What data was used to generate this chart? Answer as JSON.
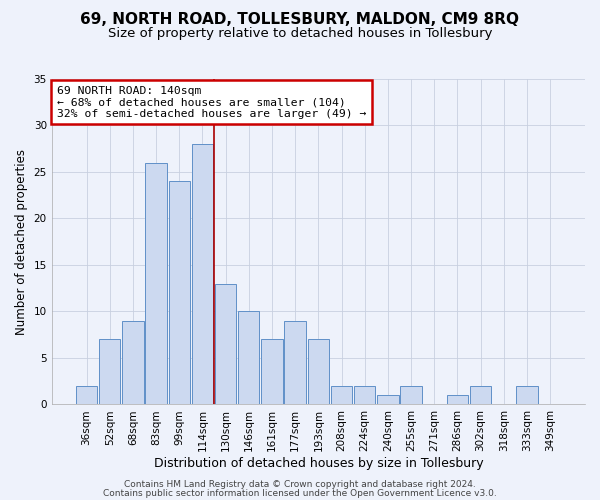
{
  "title": "69, NORTH ROAD, TOLLESBURY, MALDON, CM9 8RQ",
  "subtitle": "Size of property relative to detached houses in Tollesbury",
  "xlabel": "Distribution of detached houses by size in Tollesbury",
  "ylabel": "Number of detached properties",
  "bar_labels": [
    "36sqm",
    "52sqm",
    "68sqm",
    "83sqm",
    "99sqm",
    "114sqm",
    "130sqm",
    "146sqm",
    "161sqm",
    "177sqm",
    "193sqm",
    "208sqm",
    "224sqm",
    "240sqm",
    "255sqm",
    "271sqm",
    "286sqm",
    "302sqm",
    "318sqm",
    "333sqm",
    "349sqm"
  ],
  "bar_values": [
    2,
    7,
    9,
    26,
    24,
    28,
    13,
    10,
    7,
    9,
    7,
    2,
    2,
    1,
    2,
    0,
    1,
    2,
    0,
    2,
    0
  ],
  "bar_color": "#ccd9f0",
  "bar_edge_color": "#6090c8",
  "vline_color": "#aa0000",
  "ylim": [
    0,
    35
  ],
  "yticks": [
    0,
    5,
    10,
    15,
    20,
    25,
    30,
    35
  ],
  "annotation_title": "69 NORTH ROAD: 140sqm",
  "annotation_line1": "← 68% of detached houses are smaller (104)",
  "annotation_line2": "32% of semi-detached houses are larger (49) →",
  "annotation_box_color": "#ffffff",
  "annotation_box_edge": "#cc0000",
  "footer_line1": "Contains HM Land Registry data © Crown copyright and database right 2024.",
  "footer_line2": "Contains public sector information licensed under the Open Government Licence v3.0.",
  "bg_color": "#eef2fb",
  "plot_bg_color": "#eef2fb",
  "title_fontsize": 11,
  "subtitle_fontsize": 9.5,
  "xlabel_fontsize": 9,
  "ylabel_fontsize": 8.5,
  "tick_fontsize": 7.5,
  "footer_fontsize": 6.5
}
